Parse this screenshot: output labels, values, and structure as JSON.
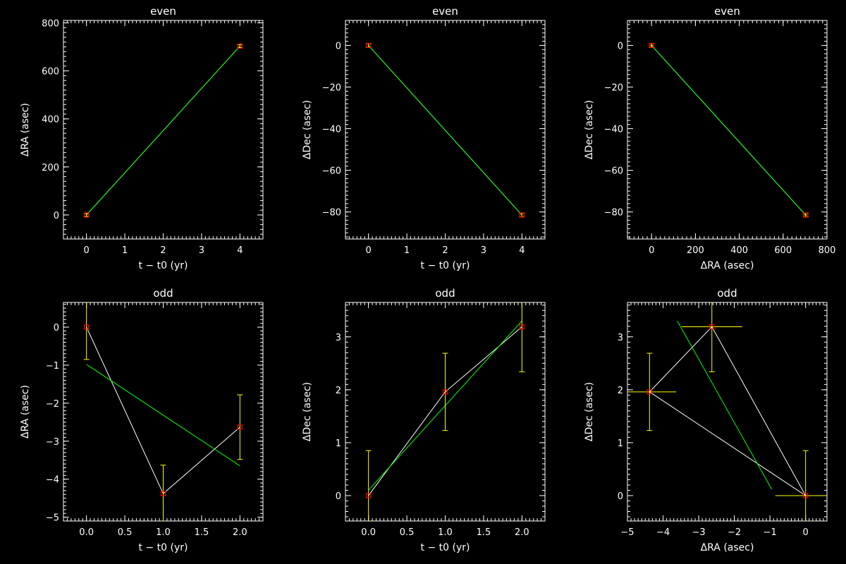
{
  "colors": {
    "background": "#000000",
    "axes": "#ffffff",
    "data_line": "#ffffff",
    "fit_line": "#00ff00",
    "error_bar": "#ffff00",
    "marker": "#ff0000"
  },
  "chart_data": [
    {
      "type": "line",
      "title": "even",
      "xlabel": "t − t0 (yr)",
      "ylabel": "ΔRA (asec)",
      "xlim": [
        -0.6,
        4.6
      ],
      "ylim": [
        -100,
        810
      ],
      "xticks": [
        0,
        1,
        2,
        3,
        4
      ],
      "xticklabels": [
        "0",
        "1",
        "2",
        "3",
        "4"
      ],
      "yticks": [
        0,
        200,
        400,
        600,
        800
      ],
      "yticklabels": [
        "0",
        "200",
        "400",
        "600",
        "800"
      ],
      "points": [
        {
          "x": 0,
          "y": 0,
          "ey": 6
        },
        {
          "x": 4,
          "y": 703,
          "ey": 6
        }
      ],
      "fit": [
        [
          0,
          0
        ],
        [
          4,
          703
        ]
      ]
    },
    {
      "type": "line",
      "title": "even",
      "xlabel": "t − t0 (yr)",
      "ylabel": "ΔDec (asec)",
      "xlim": [
        -0.6,
        4.6
      ],
      "ylim": [
        -93,
        12
      ],
      "xticks": [
        0,
        1,
        2,
        3,
        4
      ],
      "xticklabels": [
        "0",
        "1",
        "2",
        "3",
        "4"
      ],
      "yticks": [
        -80,
        -60,
        -40,
        -20,
        0
      ],
      "yticklabels": [
        "−80",
        "−60",
        "−40",
        "−20",
        "0"
      ],
      "points": [
        {
          "x": 0,
          "y": 0,
          "ey": 0.9
        },
        {
          "x": 4,
          "y": -81.5,
          "ey": 0.9
        }
      ],
      "fit": [
        [
          0,
          0
        ],
        [
          4,
          -81.5
        ]
      ]
    },
    {
      "type": "line",
      "title": "even",
      "xlabel": "ΔRA (asec)",
      "ylabel": "ΔDec (asec)",
      "xlim": [
        -110,
        800
      ],
      "ylim": [
        -93,
        12
      ],
      "xticks": [
        0,
        200,
        400,
        600,
        800
      ],
      "xticklabels": [
        "0",
        "200",
        "400",
        "600",
        "800"
      ],
      "yticks": [
        -80,
        -60,
        -40,
        -20,
        0
      ],
      "yticklabels": [
        "−80",
        "−60",
        "−40",
        "−20",
        "0"
      ],
      "points": [
        {
          "x": 0,
          "y": 0,
          "ex": 6,
          "ey": 0.9
        },
        {
          "x": 703,
          "y": -81.5,
          "ex": 6,
          "ey": 0.9
        }
      ],
      "fit": [
        [
          0,
          0
        ],
        [
          703,
          -81.5
        ]
      ]
    },
    {
      "type": "line",
      "title": "odd",
      "xlabel": "t − t0 (yr)",
      "ylabel": "ΔRA (asec)",
      "xlim": [
        -0.3,
        2.3
      ],
      "ylim": [
        -5.1,
        0.65
      ],
      "xticks": [
        0.0,
        0.5,
        1.0,
        1.5,
        2.0
      ],
      "xticklabels": [
        "0.0",
        "0.5",
        "1.0",
        "1.5",
        "2.0"
      ],
      "yticks": [
        -5,
        -4,
        -3,
        -2,
        -1,
        0
      ],
      "yticklabels": [
        "−5",
        "−4",
        "−3",
        "−2",
        "−1",
        "0"
      ],
      "points": [
        {
          "x": 0,
          "y": 0,
          "ey": 0.85
        },
        {
          "x": 1,
          "y": -4.38,
          "ey": 0.75
        },
        {
          "x": 2,
          "y": -2.63,
          "ey": 0.85
        }
      ],
      "fit": [
        [
          0,
          -0.98
        ],
        [
          2,
          -3.65
        ]
      ]
    },
    {
      "type": "line",
      "title": "odd",
      "xlabel": "t − t0 (yr)",
      "ylabel": "ΔDec (asec)",
      "xlim": [
        -0.3,
        2.3
      ],
      "ylim": [
        -0.48,
        3.65
      ],
      "xticks": [
        0.0,
        0.5,
        1.0,
        1.5,
        2.0
      ],
      "xticklabels": [
        "0.0",
        "0.5",
        "1.0",
        "1.5",
        "2.0"
      ],
      "yticks": [
        0,
        1,
        2,
        3
      ],
      "yticklabels": [
        "0",
        "1",
        "2",
        "3"
      ],
      "points": [
        {
          "x": 0,
          "y": 0,
          "ey": 0.85
        },
        {
          "x": 1,
          "y": 1.96,
          "ey": 0.73
        },
        {
          "x": 2,
          "y": 3.19,
          "ey": 0.85
        }
      ],
      "fit": [
        [
          0,
          0.1
        ],
        [
          2,
          3.3
        ]
      ]
    },
    {
      "type": "line",
      "title": "odd",
      "xlabel": "ΔRA (asec)",
      "ylabel": "ΔDec (asec)",
      "xlim": [
        -5.0,
        0.6
      ],
      "ylim": [
        -0.48,
        3.65
      ],
      "xticks": [
        -5,
        -4,
        -3,
        -2,
        -1,
        0
      ],
      "xticklabels": [
        "−5",
        "−4",
        "−3",
        "−2",
        "−1",
        "0"
      ],
      "yticks": [
        0,
        1,
        2,
        3
      ],
      "yticklabels": [
        "0",
        "1",
        "2",
        "3"
      ],
      "points": [
        {
          "x": 0,
          "y": 0,
          "ex": 0.85,
          "ey": 0.85
        },
        {
          "x": -4.38,
          "y": 1.96,
          "ex": 0.75,
          "ey": 0.73
        },
        {
          "x": -2.63,
          "y": 3.19,
          "ex": 0.85,
          "ey": 0.85
        }
      ],
      "path_order": [
        1,
        2,
        0,
        1
      ],
      "fit": [
        [
          -3.6,
          3.3
        ],
        [
          -0.95,
          0.12
        ]
      ]
    }
  ]
}
